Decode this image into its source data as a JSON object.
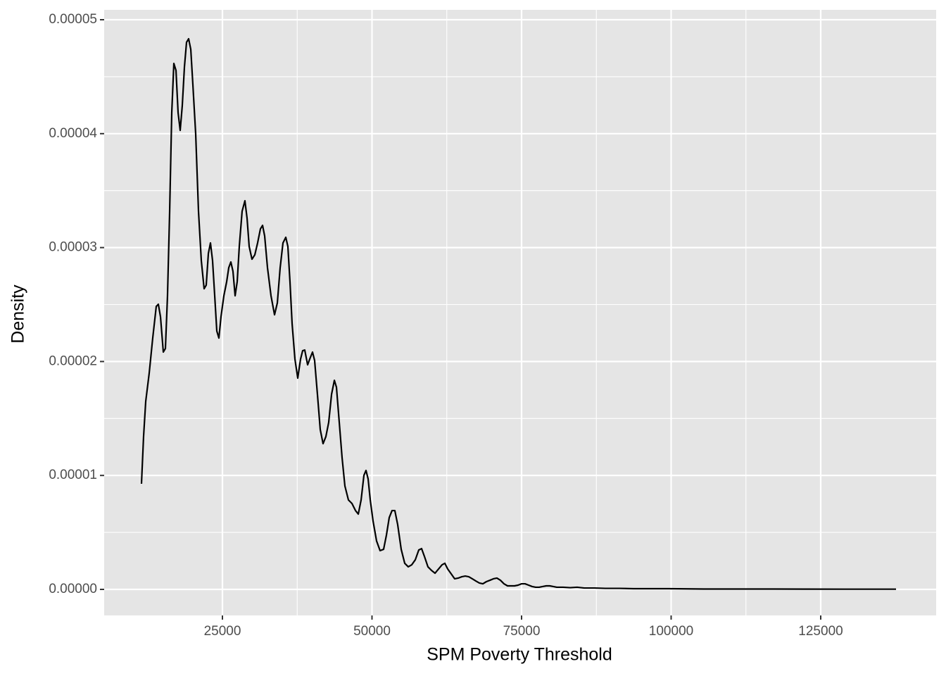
{
  "chart_data": {
    "type": "line",
    "x_label": "SPM Poverty Threshold",
    "y_label": "Density",
    "xlim": [
      5235,
      144294
    ],
    "ylim": [
      -2.2867e-06,
      5.08653e-05
    ],
    "xticks": [
      25000,
      50000,
      75000,
      100000,
      125000
    ],
    "yticks": [
      {
        "value": 0,
        "label": "0.00000"
      },
      {
        "value": 1e-05,
        "label": "0.00001"
      },
      {
        "value": 2e-05,
        "label": "0.00002"
      },
      {
        "value": 3e-05,
        "label": "0.00003"
      },
      {
        "value": 4e-05,
        "label": "0.00004"
      },
      {
        "value": 5e-05,
        "label": "0.00005"
      }
    ],
    "grid": true,
    "background": "#e5e5e5",
    "series": [
      {
        "color": "#000000",
        "x": [
          11470,
          11820,
          12180,
          12760,
          13350,
          13940,
          14290,
          14650,
          15120,
          15470,
          15820,
          16180,
          16530,
          16880,
          17240,
          17590,
          17940,
          18290,
          18650,
          19000,
          19350,
          19710,
          20060,
          20530,
          21000,
          21470,
          21940,
          22290,
          22650,
          23000,
          23350,
          23710,
          24060,
          24410,
          24760,
          25240,
          25710,
          26060,
          26410,
          26760,
          27120,
          27470,
          27820,
          28290,
          28760,
          29120,
          29470,
          29940,
          30410,
          30880,
          31350,
          31710,
          32060,
          32530,
          33120,
          33710,
          34180,
          34650,
          35120,
          35590,
          35940,
          36290,
          36650,
          37120,
          37590,
          38060,
          38410,
          38760,
          39240,
          39590,
          40060,
          40410,
          40880,
          41350,
          41820,
          42290,
          42760,
          43240,
          43710,
          44060,
          44530,
          45000,
          45470,
          46060,
          46650,
          47240,
          47710,
          48180,
          48650,
          49000,
          49350,
          49710,
          50180,
          50760,
          51350,
          51940,
          52410,
          52880,
          53350,
          53820,
          54290,
          54880,
          55470,
          56060,
          56650,
          57240,
          57820,
          58290,
          58760,
          59350,
          59940,
          60530,
          61120,
          61710,
          62180,
          62650,
          63240,
          63820,
          64410,
          65000,
          65590,
          66180,
          66760,
          67350,
          67940,
          68530,
          69120,
          69710,
          70290,
          70880,
          71470,
          72060,
          72650,
          73240,
          73820,
          74410,
          75000,
          75590,
          76180,
          76760,
          77350,
          77940,
          78530,
          79120,
          79710,
          80290,
          80880,
          81940,
          83120,
          84290,
          85470,
          87240,
          89000,
          91350,
          93710,
          99590,
          105470,
          117240,
          129000,
          137590
        ],
        "values": [
          9.27e-06,
          1.341e-05,
          1.65e-05,
          1.897e-05,
          2.206e-05,
          2.484e-05,
          2.503e-05,
          2.392e-05,
          2.083e-05,
          2.114e-05,
          2.577e-05,
          3.319e-05,
          4.184e-05,
          4.616e-05,
          4.555e-05,
          4.184e-05,
          4.029e-05,
          4.246e-05,
          4.586e-05,
          4.802e-05,
          4.833e-05,
          4.74e-05,
          4.431e-05,
          3.998e-05,
          3.319e-05,
          2.886e-05,
          2.639e-05,
          2.67e-05,
          2.948e-05,
          3.041e-05,
          2.886e-05,
          2.577e-05,
          2.268e-05,
          2.206e-05,
          2.392e-05,
          2.577e-05,
          2.701e-05,
          2.824e-05,
          2.874e-05,
          2.793e-05,
          2.577e-05,
          2.701e-05,
          3.01e-05,
          3.319e-05,
          3.411e-05,
          3.257e-05,
          3.01e-05,
          2.898e-05,
          2.936e-05,
          3.041e-05,
          3.164e-05,
          3.195e-05,
          3.102e-05,
          2.824e-05,
          2.577e-05,
          2.41e-05,
          2.515e-05,
          2.824e-05,
          3.041e-05,
          3.09e-05,
          3.01e-05,
          2.701e-05,
          2.33e-05,
          2.021e-05,
          1.854e-05,
          2.021e-05,
          2.095e-05,
          2.101e-05,
          1.971e-05,
          2.021e-05,
          2.083e-05,
          2.009e-05,
          1.712e-05,
          1.403e-05,
          1.279e-05,
          1.341e-05,
          1.465e-05,
          1.712e-05,
          1.835e-05,
          1.774e-05,
          1.465e-05,
          1.156e-05,
          9.08e-06,
          7.85e-06,
          7.54e-06,
          6.92e-06,
          6.61e-06,
          7.85e-06,
          1.001e-05,
          1.044e-05,
          9.7e-06,
          7.85e-06,
          5.99e-06,
          4.26e-06,
          3.4e-06,
          3.52e-06,
          4.76e-06,
          6.3e-06,
          6.92e-06,
          6.92e-06,
          5.69e-06,
          3.52e-06,
          2.29e-06,
          1.98e-06,
          2.16e-06,
          2.6e-06,
          3.46e-06,
          3.58e-06,
          2.9e-06,
          1.98e-06,
          1.67e-06,
          1.42e-06,
          1.79e-06,
          2.16e-06,
          2.29e-06,
          1.79e-06,
          1.36e-06,
          9.3e-07,
          9.9e-07,
          1.11e-06,
          1.17e-06,
          1.11e-06,
          9.3e-07,
          7.4e-07,
          5.6e-07,
          4.9e-07,
          6.8e-07,
          8e-07,
          9.3e-07,
          9.9e-07,
          8e-07,
          4.9e-07,
          3.1e-07,
          3.1e-07,
          3.1e-07,
          3.7e-07,
          4.9e-07,
          4.9e-07,
          3.7e-07,
          2.5e-07,
          1.9e-07,
          1.9e-07,
          2.5e-07,
          3.1e-07,
          3.1e-07,
          2.5e-07,
          1.9e-07,
          1.9e-07,
          1.5e-07,
          1.9e-07,
          1.2e-07,
          1.2e-07,
          9e-08,
          9e-08,
          6e-08,
          6e-08,
          3e-08,
          3e-08,
          2e-08,
          2e-08
        ]
      }
    ]
  }
}
